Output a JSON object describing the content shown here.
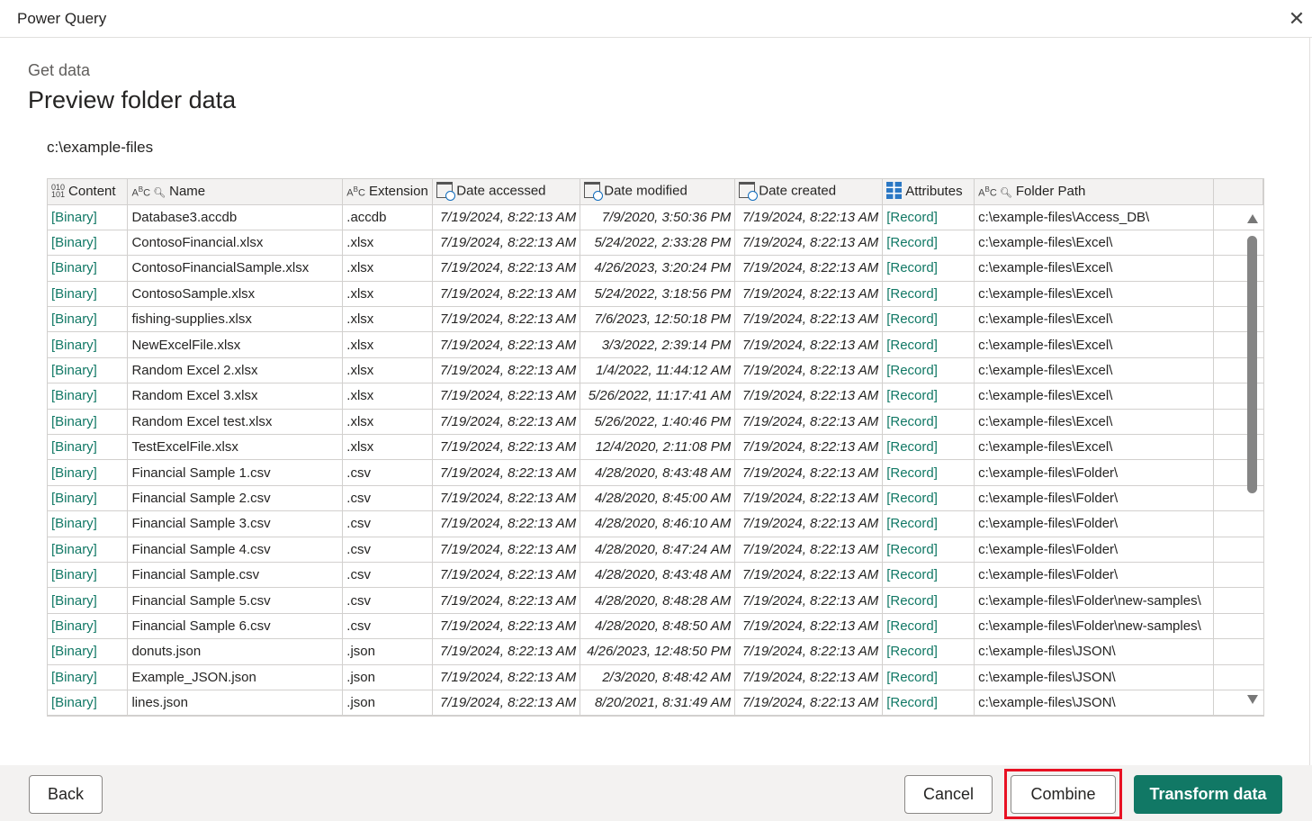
{
  "window": {
    "title": "Power Query"
  },
  "header": {
    "subtitle": "Get data",
    "title": "Preview folder data"
  },
  "folder_path": "c:\\example-files",
  "table": {
    "columns": [
      {
        "label": "Content",
        "type_icon": "binary-icon"
      },
      {
        "label": "Name",
        "type_icon": "text-key-icon"
      },
      {
        "label": "Extension",
        "type_icon": "text-icon"
      },
      {
        "label": "Date accessed",
        "type_icon": "datetime-icon"
      },
      {
        "label": "Date modified",
        "type_icon": "datetime-icon"
      },
      {
        "label": "Date created",
        "type_icon": "datetime-icon"
      },
      {
        "label": "Attributes",
        "type_icon": "record-icon"
      },
      {
        "label": "Folder Path",
        "type_icon": "text-key-icon"
      }
    ],
    "rows": [
      [
        "[Binary]",
        "Database3.accdb",
        ".accdb",
        "7/19/2024, 8:22:13 AM",
        "7/9/2020, 3:50:36 PM",
        "7/19/2024, 8:22:13 AM",
        "[Record]",
        "c:\\example-files\\Access_DB\\"
      ],
      [
        "[Binary]",
        "ContosoFinancial.xlsx",
        ".xlsx",
        "7/19/2024, 8:22:13 AM",
        "5/24/2022, 2:33:28 PM",
        "7/19/2024, 8:22:13 AM",
        "[Record]",
        "c:\\example-files\\Excel\\"
      ],
      [
        "[Binary]",
        "ContosoFinancialSample.xlsx",
        ".xlsx",
        "7/19/2024, 8:22:13 AM",
        "4/26/2023, 3:20:24 PM",
        "7/19/2024, 8:22:13 AM",
        "[Record]",
        "c:\\example-files\\Excel\\"
      ],
      [
        "[Binary]",
        "ContosoSample.xlsx",
        ".xlsx",
        "7/19/2024, 8:22:13 AM",
        "5/24/2022, 3:18:56 PM",
        "7/19/2024, 8:22:13 AM",
        "[Record]",
        "c:\\example-files\\Excel\\"
      ],
      [
        "[Binary]",
        "fishing-supplies.xlsx",
        ".xlsx",
        "7/19/2024, 8:22:13 AM",
        "7/6/2023, 12:50:18 PM",
        "7/19/2024, 8:22:13 AM",
        "[Record]",
        "c:\\example-files\\Excel\\"
      ],
      [
        "[Binary]",
        "NewExcelFile.xlsx",
        ".xlsx",
        "7/19/2024, 8:22:13 AM",
        "3/3/2022, 2:39:14 PM",
        "7/19/2024, 8:22:13 AM",
        "[Record]",
        "c:\\example-files\\Excel\\"
      ],
      [
        "[Binary]",
        "Random Excel 2.xlsx",
        ".xlsx",
        "7/19/2024, 8:22:13 AM",
        "1/4/2022, 11:44:12 AM",
        "7/19/2024, 8:22:13 AM",
        "[Record]",
        "c:\\example-files\\Excel\\"
      ],
      [
        "[Binary]",
        "Random Excel 3.xlsx",
        ".xlsx",
        "7/19/2024, 8:22:13 AM",
        "5/26/2022, 11:17:41 AM",
        "7/19/2024, 8:22:13 AM",
        "[Record]",
        "c:\\example-files\\Excel\\"
      ],
      [
        "[Binary]",
        "Random Excel test.xlsx",
        ".xlsx",
        "7/19/2024, 8:22:13 AM",
        "5/26/2022, 1:40:46 PM",
        "7/19/2024, 8:22:13 AM",
        "[Record]",
        "c:\\example-files\\Excel\\"
      ],
      [
        "[Binary]",
        "TestExcelFile.xlsx",
        ".xlsx",
        "7/19/2024, 8:22:13 AM",
        "12/4/2020, 2:11:08 PM",
        "7/19/2024, 8:22:13 AM",
        "[Record]",
        "c:\\example-files\\Excel\\"
      ],
      [
        "[Binary]",
        "Financial Sample 1.csv",
        ".csv",
        "7/19/2024, 8:22:13 AM",
        "4/28/2020, 8:43:48 AM",
        "7/19/2024, 8:22:13 AM",
        "[Record]",
        "c:\\example-files\\Folder\\"
      ],
      [
        "[Binary]",
        "Financial Sample 2.csv",
        ".csv",
        "7/19/2024, 8:22:13 AM",
        "4/28/2020, 8:45:00 AM",
        "7/19/2024, 8:22:13 AM",
        "[Record]",
        "c:\\example-files\\Folder\\"
      ],
      [
        "[Binary]",
        "Financial Sample 3.csv",
        ".csv",
        "7/19/2024, 8:22:13 AM",
        "4/28/2020, 8:46:10 AM",
        "7/19/2024, 8:22:13 AM",
        "[Record]",
        "c:\\example-files\\Folder\\"
      ],
      [
        "[Binary]",
        "Financial Sample 4.csv",
        ".csv",
        "7/19/2024, 8:22:13 AM",
        "4/28/2020, 8:47:24 AM",
        "7/19/2024, 8:22:13 AM",
        "[Record]",
        "c:\\example-files\\Folder\\"
      ],
      [
        "[Binary]",
        "Financial Sample.csv",
        ".csv",
        "7/19/2024, 8:22:13 AM",
        "4/28/2020, 8:43:48 AM",
        "7/19/2024, 8:22:13 AM",
        "[Record]",
        "c:\\example-files\\Folder\\"
      ],
      [
        "[Binary]",
        "Financial Sample 5.csv",
        ".csv",
        "7/19/2024, 8:22:13 AM",
        "4/28/2020, 8:48:28 AM",
        "7/19/2024, 8:22:13 AM",
        "[Record]",
        "c:\\example-files\\Folder\\new-samples\\"
      ],
      [
        "[Binary]",
        "Financial Sample 6.csv",
        ".csv",
        "7/19/2024, 8:22:13 AM",
        "4/28/2020, 8:48:50 AM",
        "7/19/2024, 8:22:13 AM",
        "[Record]",
        "c:\\example-files\\Folder\\new-samples\\"
      ],
      [
        "[Binary]",
        "donuts.json",
        ".json",
        "7/19/2024, 8:22:13 AM",
        "4/26/2023, 12:48:50 PM",
        "7/19/2024, 8:22:13 AM",
        "[Record]",
        "c:\\example-files\\JSON\\"
      ],
      [
        "[Binary]",
        "Example_JSON.json",
        ".json",
        "7/19/2024, 8:22:13 AM",
        "2/3/2020, 8:48:42 AM",
        "7/19/2024, 8:22:13 AM",
        "[Record]",
        "c:\\example-files\\JSON\\"
      ],
      [
        "[Binary]",
        "lines.json",
        ".json",
        "7/19/2024, 8:22:13 AM",
        "8/20/2021, 8:31:49 AM",
        "7/19/2024, 8:22:13 AM",
        "[Record]",
        "c:\\example-files\\JSON\\"
      ]
    ]
  },
  "footer": {
    "back": "Back",
    "cancel": "Cancel",
    "combine": "Combine",
    "transform": "Transform data"
  },
  "colors": {
    "accent": "#117865",
    "link": "#117865",
    "highlight": "#e81123"
  }
}
